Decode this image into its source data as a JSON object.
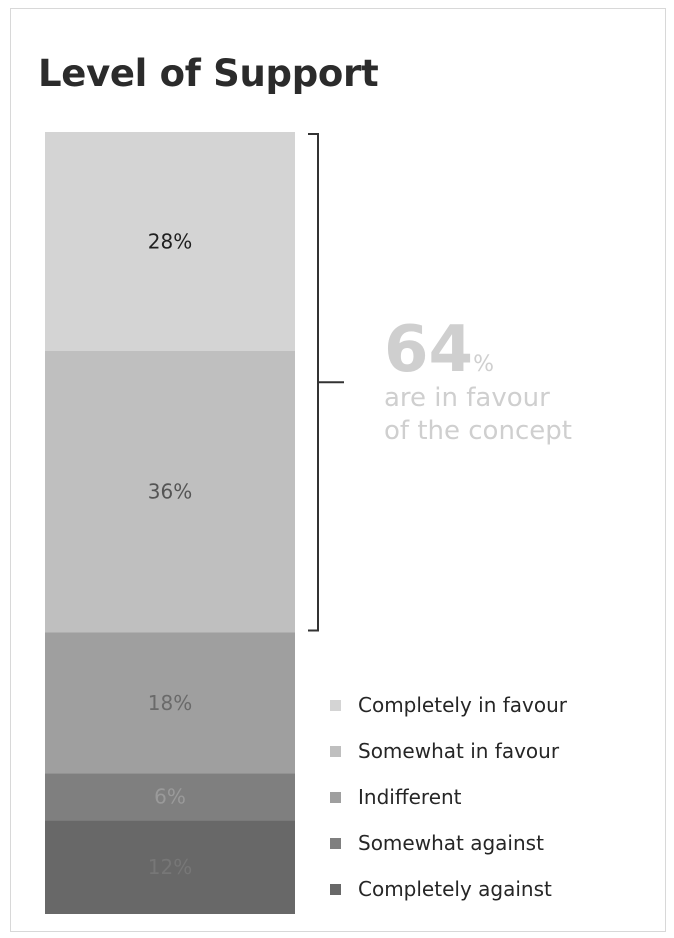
{
  "title": "Level of Support",
  "chart_data": {
    "type": "bar",
    "stacked": true,
    "title": "Level of Support",
    "series": [
      {
        "name": "Completely in favour",
        "value": 28,
        "label": "28%",
        "color": "#d4d4d4",
        "label_color": "#1f1f1f"
      },
      {
        "name": "Somewhat in favour",
        "value": 36,
        "label": "36%",
        "color": "#bfbfbf",
        "label_color": "#555555"
      },
      {
        "name": "Indifferent",
        "value": 18,
        "label": "18%",
        "color": "#9f9f9f",
        "label_color": "#6a6a6a"
      },
      {
        "name": "Somewhat against",
        "value": 6,
        "label": "6%",
        "color": "#7f7f7f",
        "label_color": "#9a9a9a"
      },
      {
        "name": "Completely against",
        "value": 12,
        "label": "12%",
        "color": "#686868",
        "label_color": "#777777"
      }
    ],
    "legend_position": "bottom-right",
    "annotation": {
      "value": "64",
      "unit": "%",
      "line1": "are in favour",
      "line2": "of the concept",
      "brackets_series": [
        "Completely in favour",
        "Somewhat in favour"
      ]
    }
  }
}
